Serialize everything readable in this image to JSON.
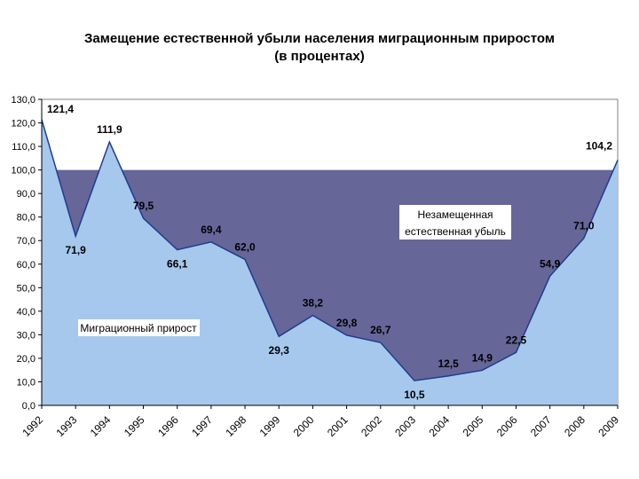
{
  "chart_data": {
    "type": "area",
    "title": "Замещение естественной убыли населения миграционным приростом",
    "subtitle": "(в процентах)",
    "categories": [
      "1992",
      "1993",
      "1994",
      "1995",
      "1996",
      "1997",
      "1998",
      "1999",
      "2000",
      "2001",
      "2002",
      "2003",
      "2004",
      "2005",
      "2006",
      "2007",
      "2008",
      "2009"
    ],
    "values": [
      121.4,
      71.9,
      111.9,
      79.5,
      66.1,
      69.4,
      62.0,
      29.3,
      38.2,
      29.8,
      26.7,
      10.5,
      12.5,
      14.9,
      22.5,
      54.9,
      71.0,
      104.2
    ],
    "value_labels": [
      "121,4",
      "71,9",
      "111,9",
      "79,5",
      "66,1",
      "69,4",
      "62,0",
      "29,3",
      "38,2",
      "29,8",
      "26,7",
      "10,5",
      "12,5",
      "14,9",
      "22,5",
      "54,9",
      "71,0",
      "104,2"
    ],
    "reference_level": 100,
    "ylim": [
      0,
      130
    ],
    "yticks": [
      0,
      10,
      20,
      30,
      40,
      50,
      60,
      70,
      80,
      90,
      100,
      110,
      120,
      130
    ],
    "ytick_labels": [
      "0,0",
      "10,0",
      "20,0",
      "30,0",
      "40,0",
      "50,0",
      "60,0",
      "70,0",
      "80,0",
      "90,0",
      "100,0",
      "110,0",
      "120,0",
      "130,0"
    ],
    "grid": false,
    "annotations": {
      "migration": "Миграционный прирост",
      "unreplaced_line1": "Незамещенная",
      "unreplaced_line2": "естественная убыль"
    },
    "colors": {
      "migration_fill": "#a6c8ec",
      "unreplaced_fill": "#666699",
      "line": "#1f3c8f",
      "plot_bg": "#ffffff"
    }
  }
}
